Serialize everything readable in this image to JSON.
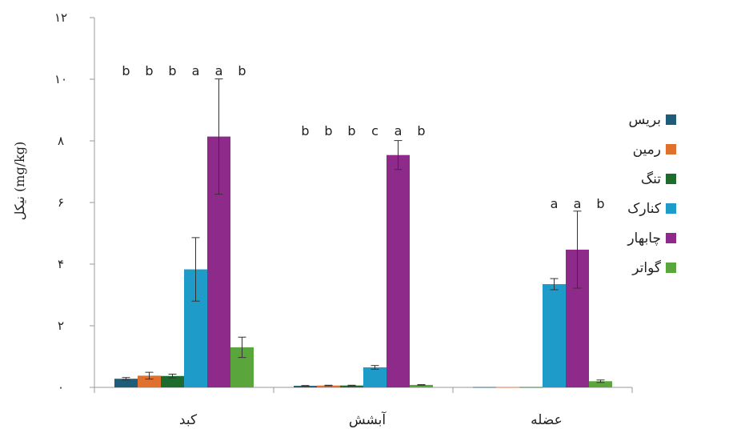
{
  "chart_data": {
    "type": "bar",
    "ylabel": "نیکل (mg/kg)",
    "ylim": [
      0,
      12
    ],
    "yticks": [
      {
        "value": 0,
        "label": "۰"
      },
      {
        "value": 2,
        "label": "۲"
      },
      {
        "value": 4,
        "label": "۴"
      },
      {
        "value": 6,
        "label": "۶"
      },
      {
        "value": 8,
        "label": "۸"
      },
      {
        "value": 10,
        "label": "۱۰"
      },
      {
        "value": 12,
        "label": "۱۲"
      }
    ],
    "categories": [
      "کبد",
      "آبشش",
      "عضله"
    ],
    "legend_position": "right",
    "series": [
      {
        "name": "بریس",
        "color": "#1f5c7a",
        "values": [
          0.28,
          0.05,
          0.01
        ],
        "errors": [
          0.04,
          0.01,
          0.0
        ]
      },
      {
        "name": "رمین",
        "color": "#e0702e",
        "values": [
          0.38,
          0.06,
          0.01
        ],
        "errors": [
          0.11,
          0.01,
          0.0
        ]
      },
      {
        "name": "تنگ",
        "color": "#1e6b2e",
        "values": [
          0.37,
          0.06,
          0.01
        ],
        "errors": [
          0.06,
          0.01,
          0.0
        ]
      },
      {
        "name": "کنارک",
        "color": "#1e9bc9",
        "values": [
          3.83,
          0.65,
          3.35
        ],
        "errors": [
          1.03,
          0.06,
          0.18
        ]
      },
      {
        "name": "چابهار",
        "color": "#8e2a8a",
        "values": [
          8.14,
          7.54,
          4.47
        ],
        "errors": [
          1.87,
          0.47,
          1.25
        ]
      },
      {
        "name": "گواتر",
        "color": "#5aa63c",
        "values": [
          1.3,
          0.08,
          0.2
        ],
        "errors": [
          0.33,
          0.01,
          0.04
        ]
      }
    ],
    "significance": [
      [
        "b",
        "b",
        "b",
        "a",
        "a",
        "b"
      ],
      [
        "b",
        "b",
        "b",
        "c",
        "a",
        "b"
      ],
      [
        "",
        "",
        "",
        "a",
        "a",
        "b"
      ]
    ]
  }
}
